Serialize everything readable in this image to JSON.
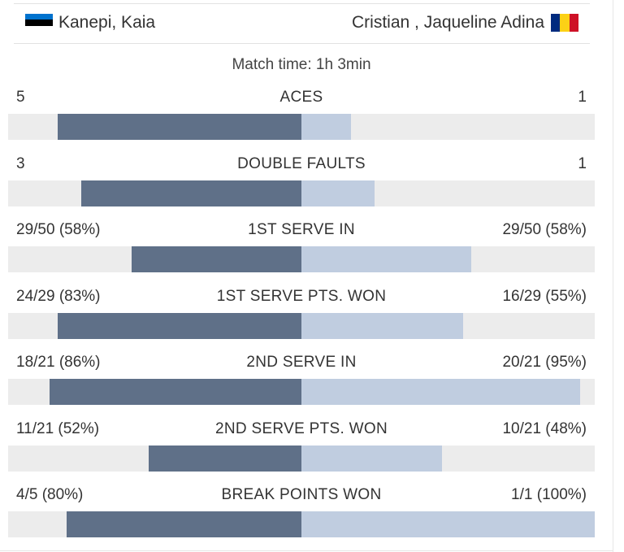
{
  "colors": {
    "left_bar": "#5f7088",
    "right_bar": "#c0cde0",
    "track": "#ececec",
    "ee_flag": [
      "#0072ce",
      "#000000",
      "#ffffff"
    ],
    "ro_flag": [
      "#002b7f",
      "#fcd116",
      "#ce1126"
    ]
  },
  "players": {
    "left": {
      "name": "Kanepi, Kaia",
      "flag_icon": "estonia-flag-icon"
    },
    "right": {
      "name": "Cristian , Jaqueline Adina",
      "flag_icon": "romania-flag-icon"
    }
  },
  "match_time": "Match time: 1h 3min",
  "stats": [
    {
      "name": "ACES",
      "left": "5",
      "right": "1",
      "left_share": 0.83,
      "right_share": 0.17
    },
    {
      "name": "DOUBLE FAULTS",
      "left": "3",
      "right": "1",
      "left_share": 0.75,
      "right_share": 0.25
    },
    {
      "name": "1ST SERVE IN",
      "left": "29/50 (58%)",
      "right": "29/50 (58%)",
      "left_share": 0.58,
      "right_share": 0.58
    },
    {
      "name": "1ST SERVE PTS. WON",
      "left": "24/29 (83%)",
      "right": "16/29 (55%)",
      "left_share": 0.83,
      "right_share": 0.55
    },
    {
      "name": "2ND SERVE IN",
      "left": "18/21 (86%)",
      "right": "20/21 (95%)",
      "left_share": 0.86,
      "right_share": 0.95
    },
    {
      "name": "2ND SERVE PTS. WON",
      "left": "11/21 (52%)",
      "right": "10/21 (48%)",
      "left_share": 0.52,
      "right_share": 0.48
    },
    {
      "name": "BREAK POINTS WON",
      "left": "4/5 (80%)",
      "right": "1/1 (100%)",
      "left_share": 0.8,
      "right_share": 1.0
    }
  ]
}
